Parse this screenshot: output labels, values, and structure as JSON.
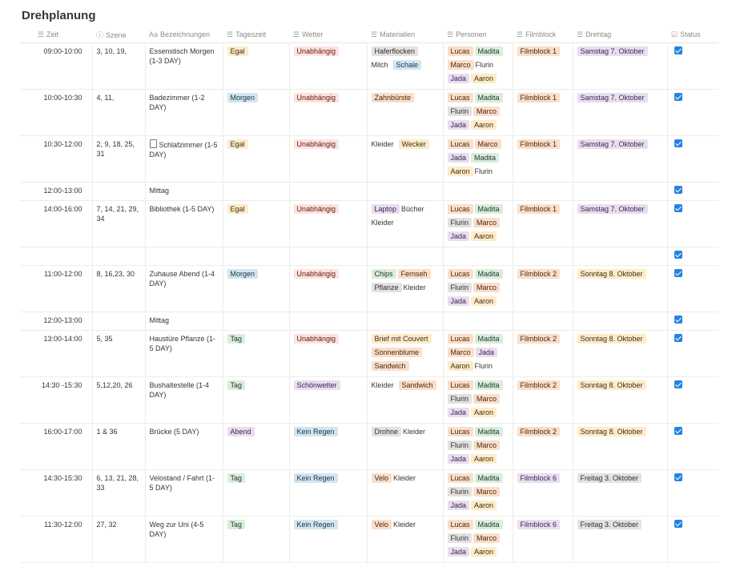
{
  "title": "Drehplanung",
  "headers": [
    {
      "label": "Zeit",
      "icon": "text-lines-icon",
      "glyph": "☰"
    },
    {
      "label": "Szene",
      "icon": "info-icon",
      "glyph": "ⓘ"
    },
    {
      "label": "Bezeichnungen",
      "icon": "title-aa-icon",
      "glyph": "Aa"
    },
    {
      "label": "Tageszeit",
      "icon": "list-icon",
      "glyph": "☰"
    },
    {
      "label": "Wetter",
      "icon": "list-icon",
      "glyph": "☰"
    },
    {
      "label": "Materialien",
      "icon": "list-icon",
      "glyph": "☰"
    },
    {
      "label": "Personen",
      "icon": "list-icon",
      "glyph": "☰"
    },
    {
      "label": "Filmblock",
      "icon": "list-icon",
      "glyph": "☰"
    },
    {
      "label": "Drehtag",
      "icon": "list-icon",
      "glyph": "☰"
    },
    {
      "label": "Status",
      "icon": "checkbox-icon",
      "glyph": "☑"
    }
  ],
  "colors": {
    "orange": "#fadec9",
    "blue": "#d3e5ef",
    "red": "#ffe2dd",
    "green": "#dbeddb",
    "purple": "#e8deee",
    "yellow": "#fdecc8",
    "gray": "#e3e2e0",
    "checkbox": "#2383e2"
  },
  "rows": [
    {
      "zeit": "09:00-10:00",
      "szene": "3, 10, 19,",
      "bez": "Essenstisch Morgen (1-3 DAY)",
      "doc": false,
      "tageszeit": [
        {
          "t": "Egal",
          "c": "yellow"
        }
      ],
      "wetter": [
        {
          "t": "Unabhängig",
          "c": "red"
        }
      ],
      "materialien": [
        {
          "t": "Haferflocken",
          "c": "gray"
        },
        {
          "t": "Milch",
          "c": "plain"
        },
        {
          "t": "Schale",
          "c": "blue"
        }
      ],
      "personen": [
        {
          "t": "Lucas",
          "c": "orange"
        },
        {
          "t": "Madita",
          "c": "green"
        },
        {
          "t": "Marco",
          "c": "orange"
        },
        {
          "t": "Flurin",
          "c": "plain"
        },
        {
          "t": "Jada",
          "c": "purple"
        },
        {
          "t": "Aaron",
          "c": "yellow"
        }
      ],
      "filmblock": [
        {
          "t": "Filmblock 1",
          "c": "orange"
        }
      ],
      "drehtag": [
        {
          "t": "Samstag 7. Oktober",
          "c": "purple"
        }
      ],
      "status": true
    },
    {
      "zeit": "10:00-10:30",
      "szene": "4, 11,",
      "bez": "Badezimmer (1-2 DAY)",
      "doc": false,
      "tageszeit": [
        {
          "t": "Morgen",
          "c": "blue"
        }
      ],
      "wetter": [
        {
          "t": "Unabhängig",
          "c": "red"
        }
      ],
      "materialien": [
        {
          "t": "Zahnbürste",
          "c": "orange"
        }
      ],
      "personen": [
        {
          "t": "Lucas",
          "c": "orange"
        },
        {
          "t": "Madita",
          "c": "green"
        },
        {
          "t": "Flurin",
          "c": "gray"
        },
        {
          "t": "Marco",
          "c": "orange"
        },
        {
          "t": "Jada",
          "c": "purple"
        },
        {
          "t": "Aaron",
          "c": "yellow"
        }
      ],
      "filmblock": [
        {
          "t": "Filmblock 1",
          "c": "orange"
        }
      ],
      "drehtag": [
        {
          "t": "Samstag 7. Oktober",
          "c": "purple"
        }
      ],
      "status": true
    },
    {
      "zeit": "10:30-12:00",
      "szene": "2, 9, 18, 25, 31",
      "bez": "Schlafzimmer (1-5 DAY)",
      "doc": true,
      "tageszeit": [
        {
          "t": "Egal",
          "c": "yellow"
        }
      ],
      "wetter": [
        {
          "t": "Unabhängig",
          "c": "red"
        }
      ],
      "materialien": [
        {
          "t": "Kleider",
          "c": "plain"
        },
        {
          "t": "Wecker",
          "c": "yellow"
        }
      ],
      "personen": [
        {
          "t": "Lucas",
          "c": "orange"
        },
        {
          "t": "Marco",
          "c": "orange"
        },
        {
          "t": "Jada",
          "c": "purple"
        },
        {
          "t": "Madita",
          "c": "green"
        },
        {
          "t": "Aaron",
          "c": "yellow"
        },
        {
          "t": "Flurin",
          "c": "plain"
        }
      ],
      "filmblock": [
        {
          "t": "Filmblock 1",
          "c": "orange"
        }
      ],
      "drehtag": [
        {
          "t": "Samstag 7. Oktober",
          "c": "purple"
        }
      ],
      "status": true
    },
    {
      "zeit": "12:00-13:00",
      "szene": "",
      "bez": "Mittag",
      "doc": false,
      "tageszeit": [],
      "wetter": [],
      "materialien": [],
      "personen": [],
      "filmblock": [],
      "drehtag": [],
      "status": true
    },
    {
      "zeit": "14:00-16:00",
      "szene": "7, 14, 21, 29, 34",
      "bez": "Bibliothek (1-5 DAY)",
      "doc": false,
      "tageszeit": [
        {
          "t": "Egal",
          "c": "yellow"
        }
      ],
      "wetter": [
        {
          "t": "Unabhängig",
          "c": "red"
        }
      ],
      "materialien": [
        {
          "t": "Laptop",
          "c": "purple"
        },
        {
          "t": "Bücher",
          "c": "plain"
        },
        {
          "t": "Kleider",
          "c": "plain"
        }
      ],
      "personen": [
        {
          "t": "Lucas",
          "c": "orange"
        },
        {
          "t": "Madita",
          "c": "green"
        },
        {
          "t": "Flurin",
          "c": "gray"
        },
        {
          "t": "Marco",
          "c": "orange"
        },
        {
          "t": "Jada",
          "c": "purple"
        },
        {
          "t": "Aaron",
          "c": "yellow"
        }
      ],
      "filmblock": [
        {
          "t": "Filmblock 1",
          "c": "orange"
        }
      ],
      "drehtag": [
        {
          "t": "Samstag 7. Oktober",
          "c": "purple"
        }
      ],
      "status": true
    },
    {
      "zeit": "",
      "szene": "",
      "bez": "",
      "doc": false,
      "tageszeit": [],
      "wetter": [],
      "materialien": [],
      "personen": [],
      "filmblock": [],
      "drehtag": [],
      "status": true
    },
    {
      "zeit": "11:00-12:00",
      "szene": "8, 16,23, 30",
      "bez": "Zuhause Abend (1-4 DAY)",
      "doc": false,
      "tageszeit": [
        {
          "t": "Morgen",
          "c": "blue"
        }
      ],
      "wetter": [
        {
          "t": "Unabhängig",
          "c": "red"
        }
      ],
      "materialien": [
        {
          "t": "Chips",
          "c": "green"
        },
        {
          "t": "Fernseh",
          "c": "orange"
        },
        {
          "t": "Pflanze",
          "c": "gray"
        },
        {
          "t": "Kleider",
          "c": "plain"
        }
      ],
      "personen": [
        {
          "t": "Lucas",
          "c": "orange"
        },
        {
          "t": "Madita",
          "c": "green"
        },
        {
          "t": "Flurin",
          "c": "gray"
        },
        {
          "t": "Marco",
          "c": "orange"
        },
        {
          "t": "Jada",
          "c": "purple"
        },
        {
          "t": "Aaron",
          "c": "yellow"
        }
      ],
      "filmblock": [
        {
          "t": "Filmblock 2",
          "c": "orange"
        }
      ],
      "drehtag": [
        {
          "t": "Sonntag 8. Oktober",
          "c": "yellow"
        }
      ],
      "status": true
    },
    {
      "zeit": "12:00-13:00",
      "szene": "",
      "bez": "Mittag",
      "doc": false,
      "tageszeit": [],
      "wetter": [],
      "materialien": [],
      "personen": [],
      "filmblock": [],
      "drehtag": [],
      "status": true
    },
    {
      "zeit": "13:00-14:00",
      "szene": "5, 35",
      "bez": "Haustüre Pflanze (1-5 DAY)",
      "doc": false,
      "tageszeit": [
        {
          "t": "Tag",
          "c": "green"
        }
      ],
      "wetter": [
        {
          "t": "Unabhängig",
          "c": "red"
        }
      ],
      "materialien": [
        {
          "t": "Brief mit Couvert",
          "c": "yellow"
        },
        {
          "t": "Sonnenblume",
          "c": "orange"
        },
        {
          "t": "Sandwich",
          "c": "orange"
        }
      ],
      "personen": [
        {
          "t": "Lucas",
          "c": "orange"
        },
        {
          "t": "Madita",
          "c": "green"
        },
        {
          "t": "Marco",
          "c": "orange"
        },
        {
          "t": "Jada",
          "c": "purple"
        },
        {
          "t": "Aaron",
          "c": "yellow"
        },
        {
          "t": "Flurin",
          "c": "plain"
        }
      ],
      "filmblock": [
        {
          "t": "Filmblock 2",
          "c": "orange"
        }
      ],
      "drehtag": [
        {
          "t": "Sonntag 8. Oktober",
          "c": "yellow"
        }
      ],
      "status": true
    },
    {
      "zeit": "14:30 -15:30",
      "szene": "5,12,20, 26",
      "bez": "Bushaltestelle (1-4 DAY)",
      "doc": false,
      "tageszeit": [
        {
          "t": "Tag",
          "c": "green"
        }
      ],
      "wetter": [
        {
          "t": "Schönwetter",
          "c": "purple"
        }
      ],
      "materialien": [
        {
          "t": "Kleider",
          "c": "plain"
        },
        {
          "t": "Sandwich",
          "c": "orange"
        }
      ],
      "personen": [
        {
          "t": "Lucas",
          "c": "orange"
        },
        {
          "t": "Madita",
          "c": "green"
        },
        {
          "t": "Flurin",
          "c": "gray"
        },
        {
          "t": "Marco",
          "c": "orange"
        },
        {
          "t": "Jada",
          "c": "purple"
        },
        {
          "t": "Aaron",
          "c": "yellow"
        }
      ],
      "filmblock": [
        {
          "t": "Filmblock 2",
          "c": "orange"
        }
      ],
      "drehtag": [
        {
          "t": "Sonntag 8. Oktober",
          "c": "yellow"
        }
      ],
      "status": true
    },
    {
      "zeit": "16:00-17:00",
      "szene": "1 & 36",
      "bez": "Brücke (5 DAY)",
      "doc": false,
      "tageszeit": [
        {
          "t": "Abend",
          "c": "purple"
        }
      ],
      "wetter": [
        {
          "t": "Kein Regen",
          "c": "blue"
        }
      ],
      "materialien": [
        {
          "t": "Drohne",
          "c": "gray"
        },
        {
          "t": "Kleider",
          "c": "plain"
        }
      ],
      "personen": [
        {
          "t": "Lucas",
          "c": "orange"
        },
        {
          "t": "Madita",
          "c": "green"
        },
        {
          "t": "Flurin",
          "c": "gray"
        },
        {
          "t": "Marco",
          "c": "orange"
        },
        {
          "t": "Jada",
          "c": "purple"
        },
        {
          "t": "Aaron",
          "c": "yellow"
        }
      ],
      "filmblock": [
        {
          "t": "Filmblock 2",
          "c": "orange"
        }
      ],
      "drehtag": [
        {
          "t": "Sonntag 8. Oktober",
          "c": "yellow"
        }
      ],
      "status": true
    },
    {
      "zeit": "14:30-15:30",
      "szene": "6, 13, 21, 28, 33",
      "bez": "Velostand / Fahrt (1-5 DAY)",
      "doc": false,
      "tageszeit": [
        {
          "t": "Tag",
          "c": "green"
        }
      ],
      "wetter": [
        {
          "t": "Kein Regen",
          "c": "blue"
        }
      ],
      "materialien": [
        {
          "t": "Velo",
          "c": "orange"
        },
        {
          "t": "Kleider",
          "c": "plain"
        }
      ],
      "personen": [
        {
          "t": "Lucas",
          "c": "orange"
        },
        {
          "t": "Madita",
          "c": "green"
        },
        {
          "t": "Flurin",
          "c": "gray"
        },
        {
          "t": "Marco",
          "c": "orange"
        },
        {
          "t": "Jada",
          "c": "purple"
        },
        {
          "t": "Aaron",
          "c": "yellow"
        }
      ],
      "filmblock": [
        {
          "t": "Filmblock 6",
          "c": "purple"
        }
      ],
      "drehtag": [
        {
          "t": "Freitag 3. Oktober",
          "c": "gray"
        }
      ],
      "status": true
    },
    {
      "zeit": "11:30-12:00",
      "szene": "27, 32",
      "bez": "Weg zur Uni (4-5 DAY)",
      "doc": false,
      "tageszeit": [
        {
          "t": "Tag",
          "c": "green"
        }
      ],
      "wetter": [
        {
          "t": "Kein Regen",
          "c": "blue"
        }
      ],
      "materialien": [
        {
          "t": "Velo",
          "c": "orange"
        },
        {
          "t": "Kleider",
          "c": "plain"
        }
      ],
      "personen": [
        {
          "t": "Lucas",
          "c": "orange"
        },
        {
          "t": "Madita",
          "c": "green"
        },
        {
          "t": "Flurin",
          "c": "gray"
        },
        {
          "t": "Marco",
          "c": "orange"
        },
        {
          "t": "Jada",
          "c": "purple"
        },
        {
          "t": "Aaron",
          "c": "yellow"
        }
      ],
      "filmblock": [
        {
          "t": "Filmblock 6",
          "c": "purple"
        }
      ],
      "drehtag": [
        {
          "t": "Freitag 3. Oktober",
          "c": "gray"
        }
      ],
      "status": true
    }
  ]
}
